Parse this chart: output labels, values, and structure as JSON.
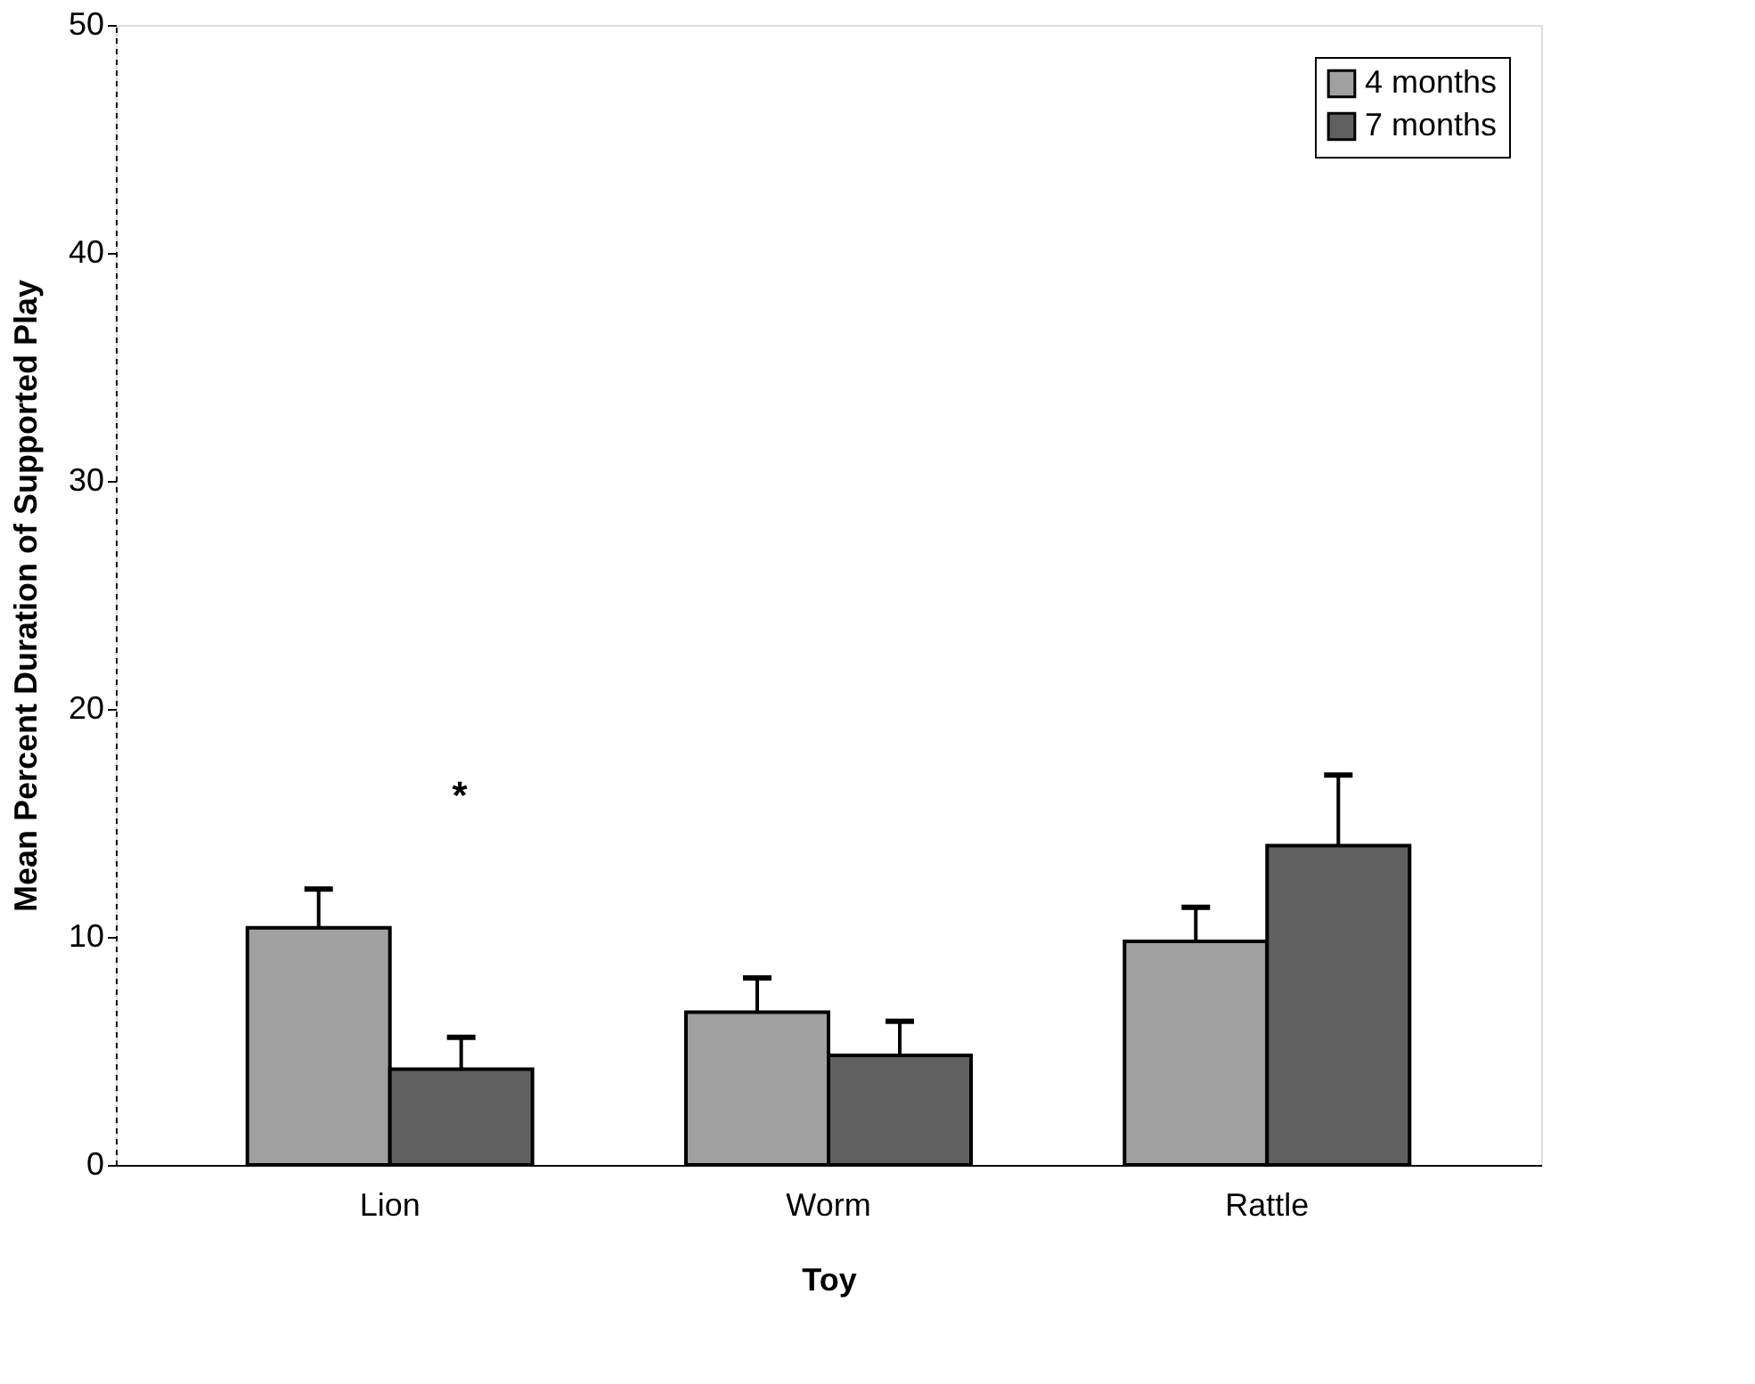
{
  "chart_data": {
    "type": "bar",
    "xlabel": "Toy",
    "ylabel": "Mean Percent Duration of Supported Play",
    "categories": [
      "Lion",
      "Worm",
      "Rattle"
    ],
    "series": [
      {
        "name": "4 months",
        "color": "#a0a0a0",
        "values": [
          10.4,
          6.7,
          9.8
        ],
        "errors": [
          1.7,
          1.5,
          1.5
        ]
      },
      {
        "name": "7 months",
        "color": "#606060",
        "values": [
          4.2,
          4.8,
          14.0
        ],
        "errors": [
          1.4,
          1.5,
          3.1
        ]
      }
    ],
    "ylim": [
      0,
      50
    ],
    "yticks": [
      0,
      10,
      20,
      30,
      40,
      50
    ],
    "grid": false,
    "legend": "top right",
    "annotations": [
      "*"
    ]
  }
}
